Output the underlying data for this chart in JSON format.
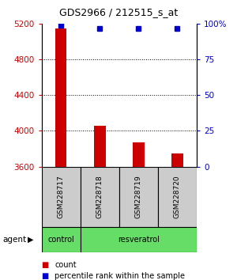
{
  "title": "GDS2966 / 212515_s_at",
  "samples": [
    "GSM228717",
    "GSM228718",
    "GSM228719",
    "GSM228720"
  ],
  "count_values": [
    5150,
    4060,
    3870,
    3750
  ],
  "percentile_values": [
    99,
    97,
    97,
    97
  ],
  "ylim_left": [
    3600,
    5200
  ],
  "ylim_right": [
    0,
    100
  ],
  "yticks_left": [
    3600,
    4000,
    4400,
    4800,
    5200
  ],
  "yticks_right": [
    0,
    25,
    50,
    75,
    100
  ],
  "ytick_labels_right": [
    "0",
    "25",
    "50",
    "75",
    "100%"
  ],
  "bar_color": "#cc0000",
  "dot_color": "#0000cc",
  "bar_width": 0.3,
  "background_color": "#ffffff",
  "plot_bg_color": "#ffffff",
  "left_tick_color": "#cc0000",
  "right_tick_color": "#0000cc",
  "sample_box_color": "#cccccc",
  "group_color_control": "#66dd66",
  "group_color_resveratrol": "#66dd66",
  "legend_count_label": "count",
  "legend_pct_label": "percentile rank within the sample",
  "agent_label": "agent"
}
